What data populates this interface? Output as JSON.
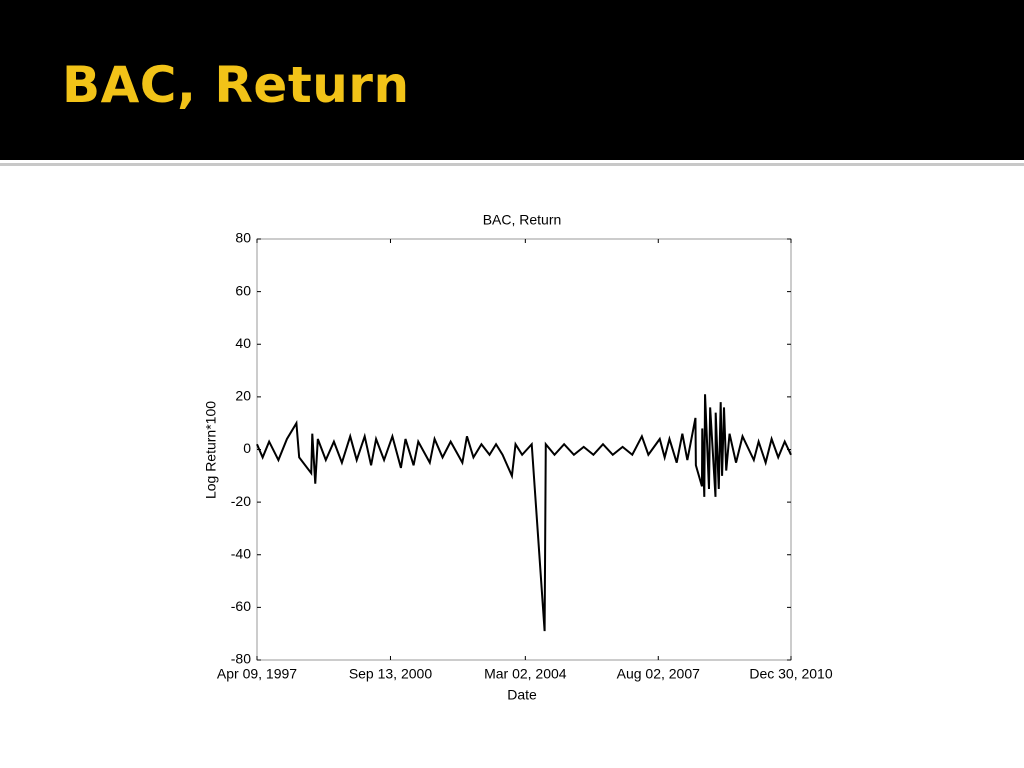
{
  "slide": {
    "title": "BAC, Return"
  },
  "chart_data": {
    "type": "line",
    "title": "BAC, Return",
    "x_label": "Date",
    "y_label": "Log Return*100",
    "color": "#000000",
    "x": [
      "1997-04-09",
      "1997-06-01",
      "1997-08-01",
      "1997-10-27",
      "1998-01-15",
      "1998-04-14",
      "1998-05-10",
      "1998-08-31",
      "1998-09-10",
      "1998-10-08",
      "1998-11-01",
      "1999-01-15",
      "1999-04-01",
      "1999-06-15",
      "1999-09-01",
      "1999-11-01",
      "2000-01-15",
      "2000-03-15",
      "2000-05-01",
      "2000-07-15",
      "2000-10-01",
      "2000-12-20",
      "2001-02-01",
      "2001-04-18",
      "2001-06-01",
      "2001-09-17",
      "2001-11-01",
      "2002-01-15",
      "2002-04-01",
      "2002-07-20",
      "2002-09-01",
      "2002-11-01",
      "2003-01-15",
      "2003-04-01",
      "2003-06-01",
      "2003-08-01",
      "2003-10-28",
      "2003-12-01",
      "2004-02-01",
      "2004-05-01",
      "2004-08-30",
      "2004-09-10",
      "2004-12-01",
      "2005-03-01",
      "2005-06-01",
      "2005-09-01",
      "2005-12-01",
      "2006-03-01",
      "2006-06-01",
      "2006-09-01",
      "2006-12-01",
      "2007-03-01",
      "2007-05-01",
      "2007-08-16",
      "2007-10-01",
      "2007-11-15",
      "2008-01-22",
      "2008-03-15",
      "2008-05-01",
      "2008-07-16",
      "2008-07-20",
      "2008-09-15",
      "2008-09-18",
      "2008-10-07",
      "2008-10-14",
      "2008-11-20",
      "2008-12-01",
      "2009-01-20",
      "2009-01-22",
      "2009-02-20",
      "2009-03-10",
      "2009-03-23",
      "2009-04-10",
      "2009-05-01",
      "2009-06-01",
      "2009-08-01",
      "2009-10-01",
      "2010-01-15",
      "2010-03-01",
      "2010-05-06",
      "2010-07-01",
      "2010-09-01",
      "2010-11-01",
      "2010-12-30"
    ],
    "values": [
      2,
      -3,
      3,
      -4,
      4,
      10,
      -3,
      -9,
      6,
      -13,
      4,
      -4,
      3,
      -5,
      5,
      -4,
      5,
      -6,
      4,
      -4,
      5,
      -7,
      4,
      -6,
      3,
      -5,
      4,
      -3,
      3,
      -5,
      5,
      -3,
      2,
      -2,
      2,
      -2,
      -10,
      2,
      -2,
      2,
      -69,
      2,
      -2,
      2,
      -2,
      1,
      -2,
      2,
      -2,
      1,
      -2,
      5,
      -2,
      4,
      -3,
      4,
      -5,
      6,
      -4,
      12,
      -6,
      -14,
      8,
      -18,
      21,
      -15,
      16,
      -18,
      14,
      -15,
      18,
      -10,
      16,
      -8,
      6,
      -5,
      5,
      -4,
      3,
      -5,
      4,
      -3,
      3,
      -2
    ],
    "xlim": [
      "1997-04-09",
      "2010-12-30"
    ],
    "xticks": [
      {
        "value": "1997-04-09",
        "label": "Apr 09, 1997"
      },
      {
        "value": "2000-09-13",
        "label": "Sep 13, 2000"
      },
      {
        "value": "2004-03-02",
        "label": "Mar 02, 2004"
      },
      {
        "value": "2007-08-02",
        "label": "Aug 02, 2007"
      },
      {
        "value": "2010-12-30",
        "label": "Dec 30, 2010"
      }
    ],
    "ylim": [
      -80,
      80
    ],
    "yticks": [
      -80,
      -60,
      -40,
      -20,
      0,
      20,
      40,
      60,
      80
    ],
    "grid": false
  }
}
